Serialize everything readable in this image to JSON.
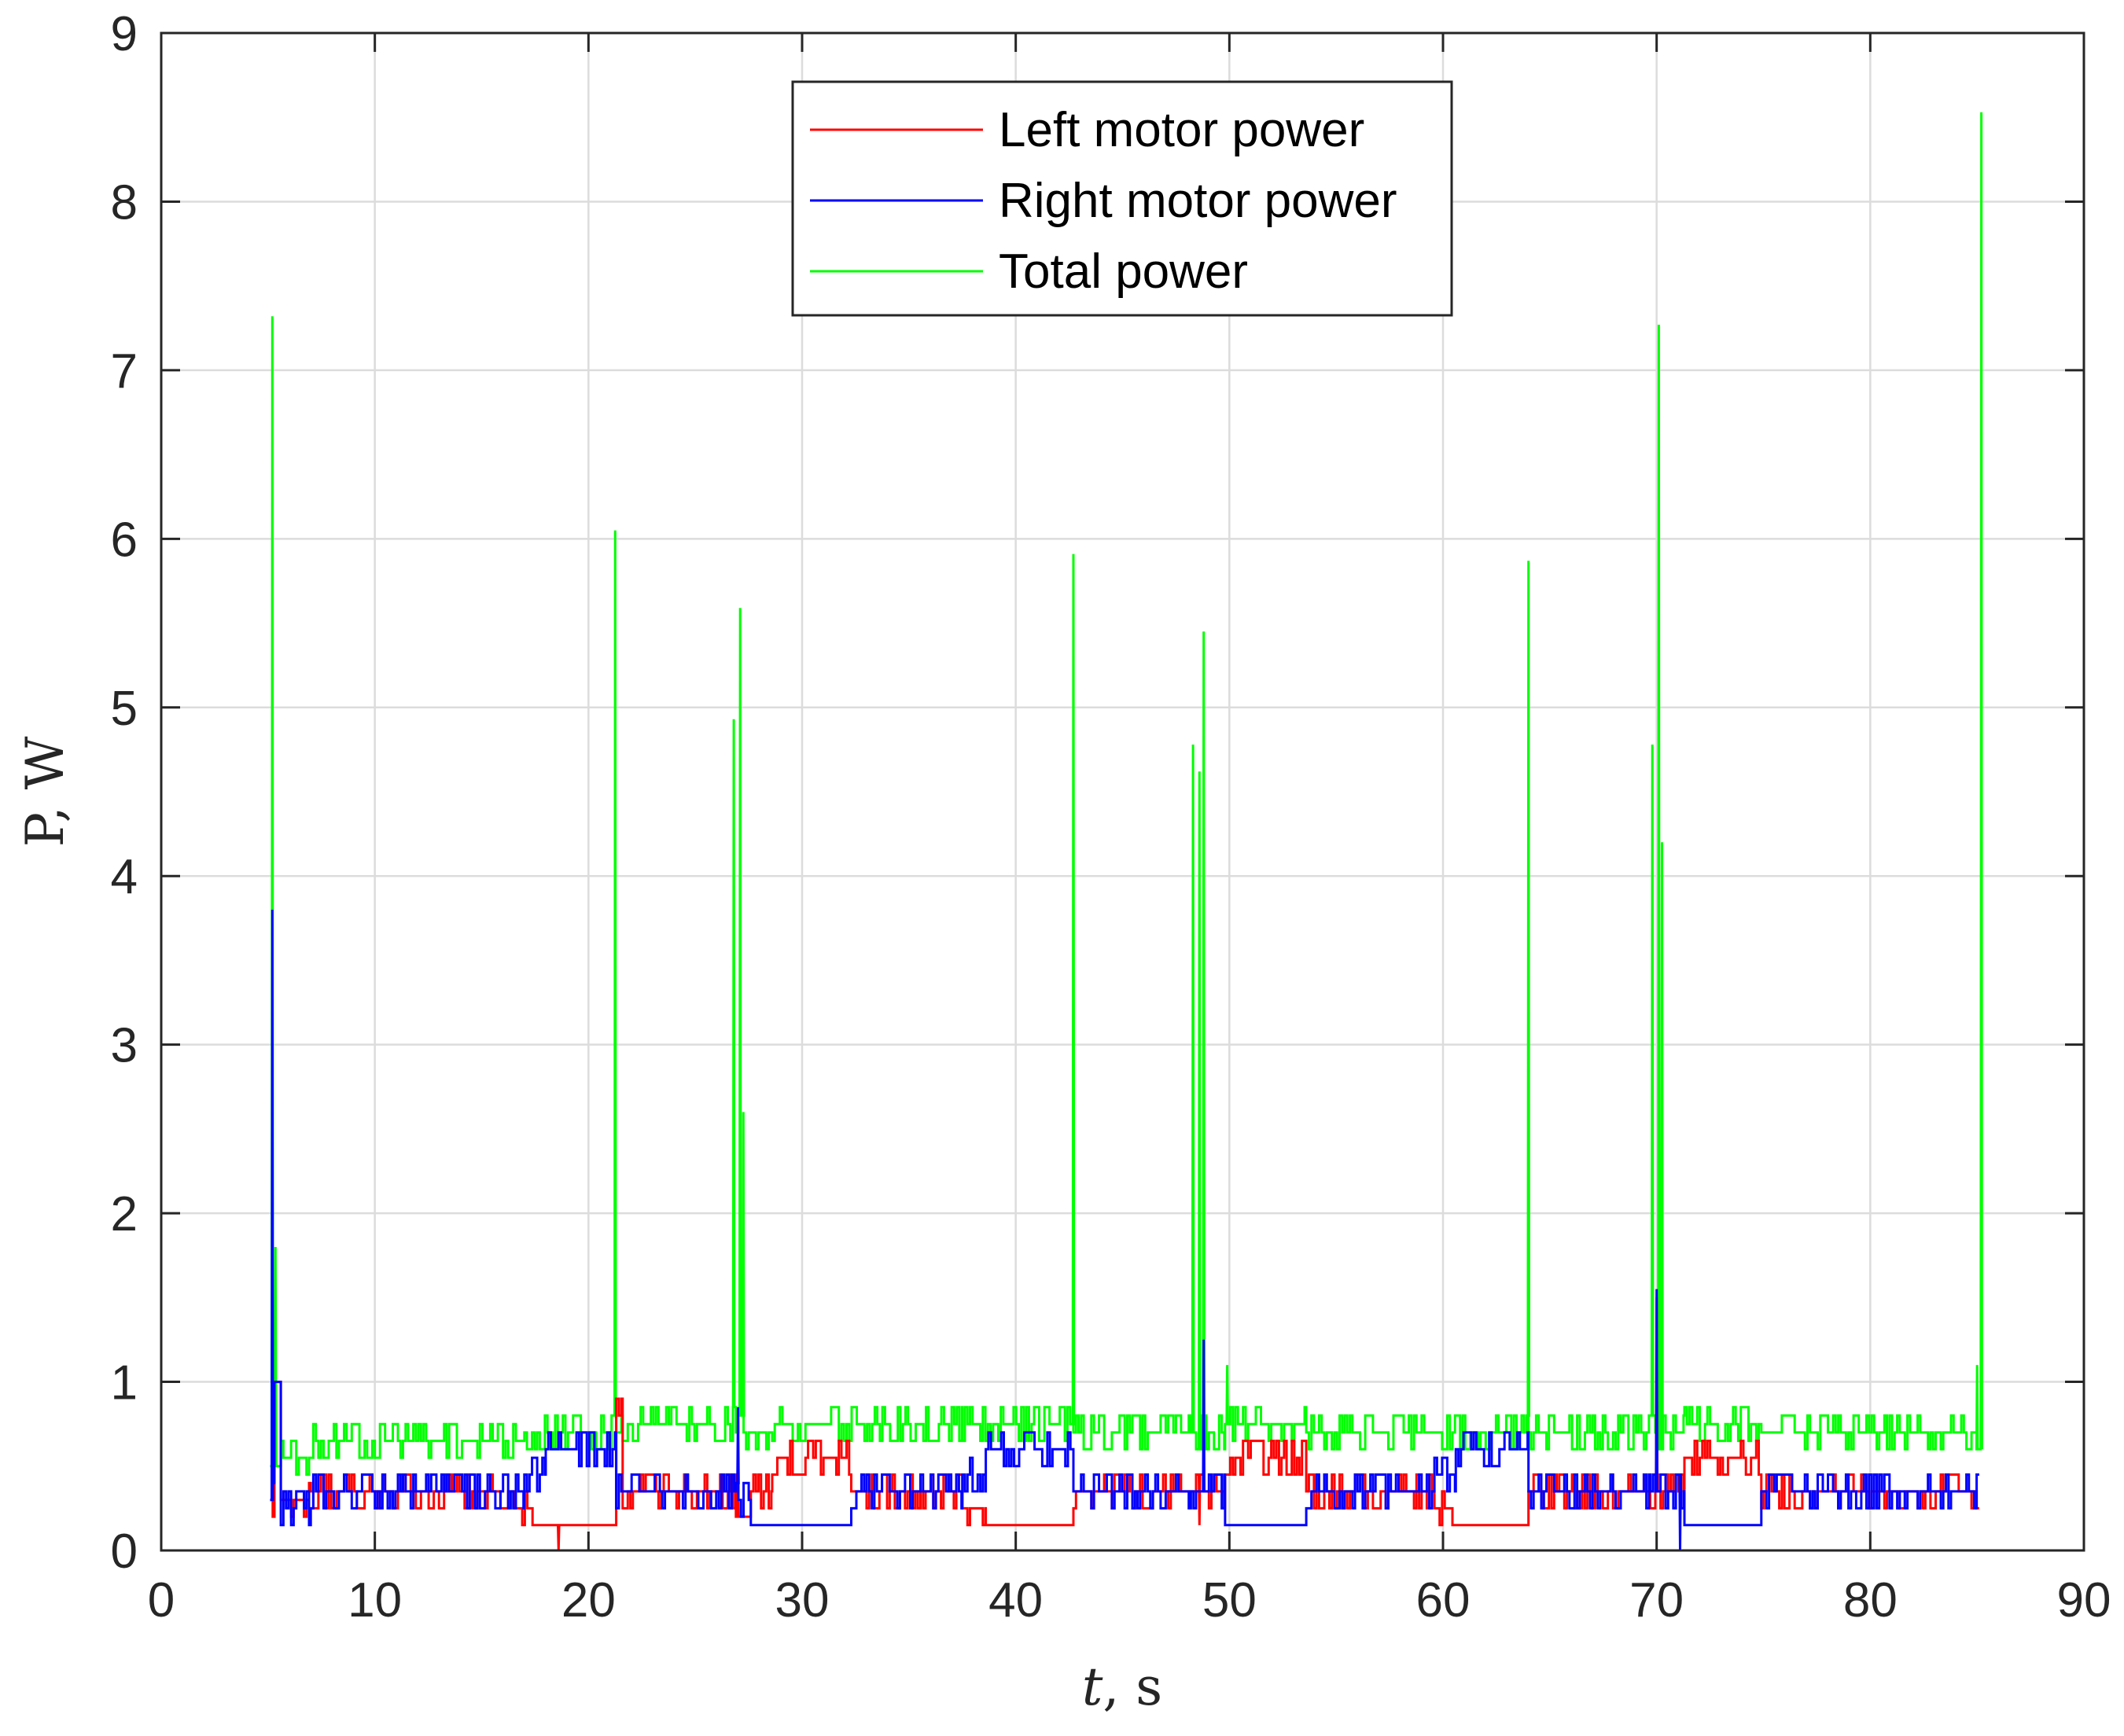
{
  "chart_data": {
    "type": "line",
    "xlabel_var": "t",
    "xlabel_unit": ", s",
    "ylabel": "P, W",
    "xlim": [
      0,
      90
    ],
    "ylim": [
      0,
      9
    ],
    "xticks": [
      0,
      10,
      20,
      30,
      40,
      50,
      60,
      70,
      80,
      90
    ],
    "yticks": [
      0,
      1,
      2,
      3,
      4,
      5,
      6,
      7,
      8,
      9
    ],
    "grid": true,
    "legend_position": "top-center",
    "series": [
      {
        "name": "Left motor power",
        "color": "#ff0000",
        "levels": [
          [
            5.1,
            0.3
          ],
          [
            5.3,
            1.0
          ],
          [
            5.6,
            0.3
          ],
          [
            7.0,
            0.35
          ],
          [
            16.3,
            0.25
          ],
          [
            17.5,
            0.15
          ],
          [
            21.3,
            0.8
          ],
          [
            21.6,
            0.35
          ],
          [
            26.9,
            0.2
          ],
          [
            27.6,
            0.35
          ],
          [
            28.6,
            0.55
          ],
          [
            32.3,
            0.35
          ],
          [
            37.5,
            0.25
          ],
          [
            38.6,
            0.15
          ],
          [
            42.7,
            0.35
          ],
          [
            48.2,
            0.35
          ],
          [
            49.8,
            0.55
          ],
          [
            53.6,
            0.35
          ],
          [
            59.6,
            0.25
          ],
          [
            60.6,
            0.15
          ],
          [
            64.0,
            0.35
          ],
          [
            69.7,
            0.35
          ],
          [
            71.3,
            0.55
          ],
          [
            74.9,
            0.35
          ],
          [
            85.1,
            0.3
          ]
        ],
        "spikes": [
          [
            5.2,
            1.0
          ],
          [
            18.6,
            0.0
          ],
          [
            27.0,
            0.5
          ],
          [
            48.6,
            0.15
          ],
          [
            70.0,
            1.5
          ]
        ]
      },
      {
        "name": "Right motor power",
        "color": "#0000ff",
        "levels": [
          [
            5.1,
            0.3
          ],
          [
            5.3,
            1.0
          ],
          [
            5.6,
            0.25
          ],
          [
            7.0,
            0.35
          ],
          [
            17.0,
            0.45
          ],
          [
            18.0,
            0.6
          ],
          [
            21.3,
            0.35
          ],
          [
            26.9,
            0.3
          ],
          [
            27.6,
            0.15
          ],
          [
            32.3,
            0.35
          ],
          [
            37.5,
            0.45
          ],
          [
            38.6,
            0.6
          ],
          [
            42.7,
            0.35
          ],
          [
            48.2,
            0.35
          ],
          [
            49.8,
            0.15
          ],
          [
            53.6,
            0.35
          ],
          [
            59.6,
            0.45
          ],
          [
            60.6,
            0.6
          ],
          [
            64.0,
            0.35
          ],
          [
            69.7,
            0.35
          ],
          [
            71.3,
            0.15
          ],
          [
            74.9,
            0.35
          ],
          [
            85.1,
            0.3
          ]
        ],
        "spikes": [
          [
            5.2,
            3.8
          ],
          [
            21.3,
            0.7
          ],
          [
            27.0,
            0.85
          ],
          [
            48.8,
            1.25
          ],
          [
            70.0,
            1.55
          ],
          [
            71.1,
            0.0
          ]
        ]
      },
      {
        "name": "Total power",
        "color": "#00ff00",
        "levels": [
          [
            5.1,
            0.5
          ],
          [
            5.6,
            0.55
          ],
          [
            7.0,
            0.65
          ],
          [
            17.0,
            0.7
          ],
          [
            21.3,
            0.7
          ],
          [
            21.6,
            0.75
          ],
          [
            26.9,
            0.7
          ],
          [
            27.6,
            0.7
          ],
          [
            28.6,
            0.75
          ],
          [
            37.5,
            0.75
          ],
          [
            42.7,
            0.7
          ],
          [
            48.2,
            0.7
          ],
          [
            49.8,
            0.75
          ],
          [
            53.6,
            0.7
          ],
          [
            59.6,
            0.7
          ],
          [
            64.0,
            0.7
          ],
          [
            69.7,
            0.7
          ],
          [
            71.3,
            0.75
          ],
          [
            74.9,
            0.7
          ],
          [
            85.1,
            0.7
          ]
        ],
        "spikes": [
          [
            5.2,
            7.32
          ],
          [
            5.35,
            1.8
          ],
          [
            21.25,
            6.05
          ],
          [
            26.8,
            4.93
          ],
          [
            27.1,
            5.59
          ],
          [
            27.25,
            2.6
          ],
          [
            42.7,
            5.91
          ],
          [
            48.3,
            4.78
          ],
          [
            48.6,
            4.62
          ],
          [
            48.8,
            5.45
          ],
          [
            49.9,
            1.1
          ],
          [
            64.0,
            5.87
          ],
          [
            69.8,
            4.78
          ],
          [
            70.1,
            7.27
          ],
          [
            70.25,
            4.2
          ],
          [
            85.0,
            1.1
          ],
          [
            85.2,
            8.53
          ]
        ]
      }
    ]
  }
}
